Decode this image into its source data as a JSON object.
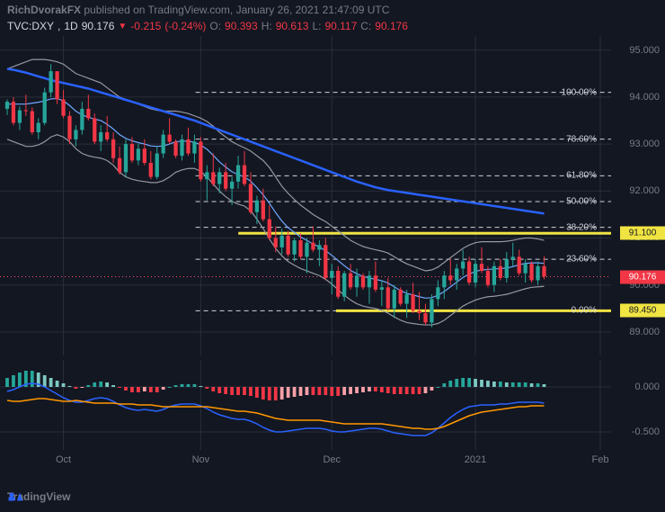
{
  "header": {
    "author": "RichDvorakFX",
    "pub_text": "published on TradingView.com, January 26, 2021 21:47:09 UTC"
  },
  "symbol": {
    "ticker": "TVC:DXY",
    "tf": "1D",
    "last": "90.176",
    "chg": "-0.215",
    "chg_pct": "(-0.24%)",
    "o_lbl": "O:",
    "o": "90.393",
    "h_lbl": "H:",
    "h": "90.613",
    "l_lbl": "L:",
    "l": "90.117",
    "c_lbl": "C:",
    "c": "90.176"
  },
  "footer": {
    "brand": "TradingView"
  },
  "colors": {
    "bg": "#131722",
    "grid": "#2a2e39",
    "axis_text": "#787b86",
    "up": "#26a69a",
    "dn": "#f23645",
    "bb": "#9598a1",
    "ma_blue": "#2962ff",
    "dot_red": "#ff4d6d",
    "dash_white": "#d1d4dc",
    "yellow": "#f0e442",
    "badge_red": "#f23645",
    "badge_yellow": "#f0e442",
    "badge_red_tx": "#ffffff",
    "badge_yellow_tx": "#131722",
    "macd_orange": "#ff9800",
    "macd_blue": "#2962ff",
    "hist_pos": "#26a69a",
    "hist_neg": "#f23645",
    "hist_pos_fade": "#7dc9c1",
    "hist_neg_fade": "#f8a0a8"
  },
  "y": {
    "min": 88.5,
    "max": 95.3,
    "ticks": [
      95.0,
      94.0,
      93.0,
      92.0,
      91.0,
      90.0,
      89.0
    ]
  },
  "x": {
    "ticks": [
      {
        "i": 9,
        "l": "Oct"
      },
      {
        "i": 31,
        "l": "Nov"
      },
      {
        "i": 52,
        "l": "Dec"
      },
      {
        "i": 75,
        "l": "2021"
      },
      {
        "i": 95,
        "l": "Feb"
      }
    ],
    "n": 96
  },
  "fib": {
    "levels": [
      {
        "pct": "100.00%",
        "y": 94.1
      },
      {
        "pct": "78.60%",
        "y": 93.105
      },
      {
        "pct": "61.80%",
        "y": 92.324
      },
      {
        "pct": "50.00%",
        "y": 91.775
      },
      {
        "pct": "38.20%",
        "y": 91.227
      },
      {
        "pct": "23.60%",
        "y": 90.548
      },
      {
        "pct": "0.00%",
        "y": 89.45
      }
    ],
    "x_start": 0.32
  },
  "badges": [
    {
      "y": 91.1,
      "txt": "91.100",
      "bg": "#f0e442",
      "tx": "#131722"
    },
    {
      "y": 90.176,
      "txt": "90.176",
      "bg": "#f23645",
      "tx": "#ffffff"
    },
    {
      "y": 89.45,
      "txt": "89.450",
      "bg": "#f0e442",
      "tx": "#131722"
    }
  ],
  "yellow_lines": [
    {
      "y": 91.1,
      "x0": 0.39,
      "x1": 1.0
    },
    {
      "y": 89.45,
      "x0": 0.55,
      "x1": 1.0
    }
  ],
  "dot_red_y": 90.176,
  "candles": [
    [
      93.75,
      93.95,
      93.62,
      93.9,
      1
    ],
    [
      93.9,
      94.0,
      93.4,
      93.45,
      0
    ],
    [
      93.45,
      93.8,
      93.3,
      93.72,
      1
    ],
    [
      93.72,
      94.05,
      93.6,
      93.7,
      0
    ],
    [
      93.7,
      93.78,
      93.2,
      93.25,
      0
    ],
    [
      93.25,
      93.55,
      93.1,
      93.45,
      1
    ],
    [
      93.45,
      94.2,
      93.4,
      94.1,
      1
    ],
    [
      94.1,
      94.7,
      94.0,
      94.55,
      1
    ],
    [
      94.55,
      94.55,
      93.85,
      93.95,
      0
    ],
    [
      93.95,
      94.15,
      93.55,
      93.6,
      0
    ],
    [
      93.6,
      93.7,
      93.0,
      93.1,
      0
    ],
    [
      93.1,
      93.4,
      92.95,
      93.3,
      1
    ],
    [
      93.3,
      93.9,
      93.2,
      93.75,
      1
    ],
    [
      93.75,
      94.05,
      93.5,
      93.55,
      0
    ],
    [
      93.55,
      93.65,
      93.0,
      93.05,
      0
    ],
    [
      93.05,
      93.4,
      92.85,
      93.25,
      1
    ],
    [
      93.25,
      93.6,
      93.05,
      93.1,
      0
    ],
    [
      93.1,
      93.25,
      92.6,
      92.7,
      0
    ],
    [
      92.7,
      92.95,
      92.35,
      92.4,
      0
    ],
    [
      92.4,
      93.1,
      92.3,
      93.0,
      1
    ],
    [
      93.0,
      93.15,
      92.6,
      92.65,
      0
    ],
    [
      92.65,
      93.0,
      92.55,
      92.9,
      1
    ],
    [
      92.9,
      93.1,
      92.55,
      92.6,
      0
    ],
    [
      92.6,
      92.85,
      92.25,
      92.3,
      0
    ],
    [
      92.3,
      92.95,
      92.25,
      92.8,
      1
    ],
    [
      92.8,
      93.3,
      92.7,
      93.2,
      1
    ],
    [
      93.2,
      93.55,
      93.0,
      93.05,
      0
    ],
    [
      93.05,
      93.1,
      92.7,
      92.75,
      0
    ],
    [
      92.75,
      93.2,
      92.65,
      93.1,
      1
    ],
    [
      93.1,
      93.35,
      92.75,
      92.8,
      0
    ],
    [
      92.8,
      93.2,
      92.6,
      93.05,
      1
    ],
    [
      93.05,
      93.15,
      92.2,
      92.25,
      0
    ],
    [
      92.25,
      92.55,
      91.8,
      92.4,
      1
    ],
    [
      92.4,
      92.8,
      92.1,
      92.15,
      0
    ],
    [
      92.15,
      92.5,
      91.95,
      92.4,
      1
    ],
    [
      92.4,
      92.6,
      92.0,
      92.05,
      0
    ],
    [
      92.05,
      92.3,
      91.7,
      92.2,
      1
    ],
    [
      92.2,
      92.75,
      92.05,
      92.55,
      1
    ],
    [
      92.55,
      92.85,
      92.1,
      92.15,
      0
    ],
    [
      92.15,
      92.4,
      91.5,
      91.55,
      0
    ],
    [
      91.55,
      91.9,
      91.3,
      91.8,
      1
    ],
    [
      91.8,
      92.05,
      91.35,
      91.4,
      0
    ],
    [
      91.4,
      91.7,
      90.95,
      91.0,
      0
    ],
    [
      91.0,
      91.25,
      90.7,
      90.8,
      0
    ],
    [
      90.8,
      91.2,
      90.65,
      91.05,
      1
    ],
    [
      91.05,
      91.15,
      90.6,
      90.65,
      0
    ],
    [
      90.65,
      91.0,
      90.5,
      90.95,
      1
    ],
    [
      90.95,
      91.1,
      90.55,
      90.6,
      0
    ],
    [
      90.6,
      91.0,
      90.25,
      90.9,
      1
    ],
    [
      90.9,
      91.25,
      90.7,
      90.75,
      0
    ],
    [
      90.75,
      90.95,
      90.4,
      90.85,
      1
    ],
    [
      90.85,
      91.0,
      90.1,
      90.15,
      0
    ],
    [
      90.15,
      90.45,
      89.8,
      90.3,
      1
    ],
    [
      90.3,
      90.4,
      89.7,
      89.75,
      0
    ],
    [
      89.75,
      90.3,
      89.65,
      90.25,
      1
    ],
    [
      90.25,
      90.45,
      89.9,
      89.95,
      0
    ],
    [
      89.95,
      90.35,
      89.75,
      90.2,
      1
    ],
    [
      90.2,
      90.25,
      89.9,
      89.95,
      0
    ],
    [
      89.95,
      90.3,
      89.6,
      90.2,
      1
    ],
    [
      90.2,
      90.5,
      89.85,
      89.9,
      0
    ],
    [
      89.9,
      90.1,
      89.55,
      89.95,
      1
    ],
    [
      89.95,
      90.15,
      89.45,
      89.5,
      0
    ],
    [
      89.5,
      90.0,
      89.3,
      89.9,
      1
    ],
    [
      89.9,
      89.95,
      89.55,
      89.6,
      0
    ],
    [
      89.6,
      89.9,
      89.3,
      89.8,
      1
    ],
    [
      89.8,
      90.05,
      89.4,
      89.45,
      0
    ],
    [
      89.45,
      89.85,
      89.25,
      89.4,
      0
    ],
    [
      89.4,
      89.6,
      89.15,
      89.2,
      0
    ],
    [
      89.2,
      89.8,
      89.1,
      89.7,
      1
    ],
    [
      89.7,
      90.1,
      89.55,
      89.95,
      1
    ],
    [
      89.95,
      90.3,
      89.7,
      90.2,
      1
    ],
    [
      90.2,
      90.55,
      90.0,
      90.1,
      0
    ],
    [
      90.1,
      90.45,
      89.9,
      90.35,
      1
    ],
    [
      90.35,
      90.75,
      90.2,
      90.5,
      1
    ],
    [
      90.5,
      90.6,
      90.0,
      90.05,
      0
    ],
    [
      90.05,
      90.55,
      89.95,
      90.45,
      1
    ],
    [
      90.45,
      90.8,
      90.25,
      90.3,
      0
    ],
    [
      90.3,
      90.4,
      89.95,
      90.0,
      0
    ],
    [
      90.0,
      90.5,
      89.85,
      90.4,
      1
    ],
    [
      90.4,
      90.55,
      90.1,
      90.15,
      0
    ],
    [
      90.15,
      90.7,
      90.05,
      90.55,
      1
    ],
    [
      90.55,
      90.9,
      90.4,
      90.6,
      1
    ],
    [
      90.6,
      90.75,
      90.2,
      90.25,
      0
    ],
    [
      90.25,
      90.55,
      90.05,
      90.45,
      1
    ],
    [
      90.45,
      90.5,
      90.05,
      90.1,
      0
    ],
    [
      90.1,
      90.5,
      90.0,
      90.4,
      1
    ],
    [
      90.4,
      90.61,
      90.12,
      90.18,
      0
    ]
  ],
  "bb_upper": [
    94.6,
    94.65,
    94.7,
    94.75,
    94.8,
    94.8,
    94.8,
    94.78,
    94.75,
    94.7,
    94.6,
    94.5,
    94.45,
    94.4,
    94.35,
    94.3,
    94.2,
    94.1,
    94.0,
    93.95,
    93.9,
    93.85,
    93.8,
    93.75,
    93.72,
    93.7,
    93.7,
    93.7,
    93.68,
    93.65,
    93.6,
    93.55,
    93.48,
    93.38,
    93.25,
    93.15,
    93.05,
    92.98,
    92.92,
    92.85,
    92.75,
    92.65,
    92.5,
    92.3,
    92.1,
    91.95,
    91.82,
    91.7,
    91.6,
    91.5,
    91.42,
    91.35,
    91.25,
    91.15,
    91.05,
    90.95,
    90.88,
    90.82,
    90.78,
    90.75,
    90.72,
    90.68,
    90.6,
    90.52,
    90.45,
    90.4,
    90.35,
    90.3,
    90.32,
    90.38,
    90.48,
    90.58,
    90.68,
    90.78,
    90.85,
    90.9,
    90.92,
    90.92,
    90.92,
    90.92,
    90.93,
    90.95,
    90.98,
    91.0,
    91.0,
    90.98,
    90.95
  ],
  "bb_lower": [
    93.1,
    93.05,
    93.0,
    92.95,
    92.95,
    92.98,
    93.05,
    93.15,
    93.2,
    93.15,
    93.05,
    92.9,
    92.8,
    92.75,
    92.72,
    92.7,
    92.65,
    92.55,
    92.4,
    92.3,
    92.25,
    92.22,
    92.2,
    92.18,
    92.18,
    92.22,
    92.3,
    92.4,
    92.45,
    92.48,
    92.48,
    92.42,
    92.3,
    92.15,
    92.0,
    91.88,
    91.78,
    91.72,
    91.68,
    91.58,
    91.4,
    91.2,
    90.98,
    90.78,
    90.62,
    90.5,
    90.42,
    90.35,
    90.3,
    90.25,
    90.2,
    90.12,
    90.02,
    89.9,
    89.78,
    89.68,
    89.6,
    89.55,
    89.52,
    89.5,
    89.46,
    89.4,
    89.32,
    89.25,
    89.2,
    89.18,
    89.16,
    89.15,
    89.15,
    89.18,
    89.25,
    89.35,
    89.45,
    89.55,
    89.62,
    89.68,
    89.72,
    89.75,
    89.76,
    89.78,
    89.8,
    89.84,
    89.88,
    89.92,
    89.95,
    89.96,
    89.97
  ],
  "bb_mid": [
    93.85,
    93.85,
    93.85,
    93.85,
    93.87,
    93.89,
    93.92,
    93.96,
    93.97,
    93.92,
    93.82,
    93.7,
    93.62,
    93.57,
    93.53,
    93.5,
    93.42,
    93.32,
    93.2,
    93.12,
    93.07,
    93.03,
    93.0,
    92.96,
    92.95,
    92.96,
    93.0,
    93.05,
    93.06,
    93.06,
    93.04,
    92.98,
    92.89,
    92.76,
    92.62,
    92.51,
    92.41,
    92.35,
    92.3,
    92.21,
    92.07,
    91.92,
    91.74,
    91.54,
    91.36,
    91.22,
    91.12,
    91.02,
    90.95,
    90.87,
    90.81,
    90.73,
    90.63,
    90.52,
    90.41,
    90.31,
    90.24,
    90.18,
    90.15,
    90.12,
    90.09,
    90.04,
    89.96,
    89.88,
    89.82,
    89.79,
    89.75,
    89.72,
    89.73,
    89.78,
    89.86,
    89.96,
    90.06,
    90.16,
    90.23,
    90.29,
    90.32,
    90.33,
    90.34,
    90.35,
    90.36,
    90.39,
    90.43,
    90.46,
    90.47,
    90.47,
    90.46
  ],
  "ma_long": [
    94.6,
    94.58,
    94.55,
    94.52,
    94.48,
    94.44,
    94.4,
    94.36,
    94.33,
    94.3,
    94.27,
    94.24,
    94.21,
    94.18,
    94.14,
    94.1,
    94.06,
    94.02,
    93.98,
    93.94,
    93.9,
    93.86,
    93.82,
    93.78,
    93.74,
    93.7,
    93.66,
    93.62,
    93.58,
    93.54,
    93.5,
    93.45,
    93.4,
    93.35,
    93.3,
    93.25,
    93.2,
    93.15,
    93.1,
    93.05,
    93.0,
    92.95,
    92.9,
    92.85,
    92.8,
    92.75,
    92.7,
    92.65,
    92.6,
    92.55,
    92.5,
    92.45,
    92.4,
    92.35,
    92.3,
    92.25,
    92.2,
    92.16,
    92.12,
    92.08,
    92.05,
    92.02,
    92.0,
    91.98,
    91.96,
    91.94,
    91.92,
    91.9,
    91.88,
    91.86,
    91.84,
    91.82,
    91.8,
    91.78,
    91.76,
    91.74,
    91.72,
    91.7,
    91.68,
    91.66,
    91.64,
    91.62,
    91.6,
    91.58,
    91.56,
    91.54,
    91.52
  ],
  "sub": {
    "min": -0.7,
    "max": 0.3,
    "ticks": [
      0.0,
      -0.5
    ],
    "hist": [
      0.1,
      0.13,
      0.16,
      0.18,
      0.18,
      0.16,
      0.13,
      0.1,
      0.07,
      0.04,
      0.01,
      -0.02,
      -0.01,
      0.02,
      0.05,
      0.06,
      0.05,
      0.02,
      -0.01,
      -0.04,
      -0.06,
      -0.06,
      -0.05,
      -0.06,
      -0.06,
      -0.03,
      0.0,
      0.02,
      0.03,
      0.03,
      0.03,
      0.01,
      -0.02,
      -0.05,
      -0.07,
      -0.08,
      -0.09,
      -0.09,
      -0.09,
      -0.1,
      -0.12,
      -0.14,
      -0.15,
      -0.15,
      -0.14,
      -0.12,
      -0.11,
      -0.1,
      -0.09,
      -0.09,
      -0.09,
      -0.09,
      -0.1,
      -0.1,
      -0.09,
      -0.08,
      -0.07,
      -0.06,
      -0.05,
      -0.05,
      -0.06,
      -0.07,
      -0.08,
      -0.08,
      -0.08,
      -0.08,
      -0.08,
      -0.07,
      -0.04,
      0.0,
      0.04,
      0.07,
      0.09,
      0.1,
      0.1,
      0.09,
      0.08,
      0.07,
      0.06,
      0.06,
      0.05,
      0.05,
      0.05,
      0.05,
      0.04,
      0.04,
      0.03
    ],
    "macd": [
      -0.05,
      -0.03,
      0.0,
      0.03,
      0.04,
      0.03,
      0.0,
      -0.04,
      -0.08,
      -0.12,
      -0.15,
      -0.17,
      -0.17,
      -0.15,
      -0.13,
      -0.12,
      -0.13,
      -0.16,
      -0.2,
      -0.23,
      -0.25,
      -0.26,
      -0.25,
      -0.26,
      -0.27,
      -0.25,
      -0.22,
      -0.2,
      -0.19,
      -0.19,
      -0.19,
      -0.21,
      -0.24,
      -0.28,
      -0.31,
      -0.33,
      -0.35,
      -0.36,
      -0.36,
      -0.38,
      -0.41,
      -0.45,
      -0.48,
      -0.5,
      -0.5,
      -0.49,
      -0.48,
      -0.47,
      -0.46,
      -0.46,
      -0.46,
      -0.47,
      -0.49,
      -0.5,
      -0.5,
      -0.49,
      -0.48,
      -0.47,
      -0.46,
      -0.46,
      -0.47,
      -0.49,
      -0.51,
      -0.52,
      -0.53,
      -0.54,
      -0.54,
      -0.54,
      -0.51,
      -0.46,
      -0.4,
      -0.34,
      -0.29,
      -0.25,
      -0.22,
      -0.21,
      -0.2,
      -0.2,
      -0.2,
      -0.19,
      -0.19,
      -0.18,
      -0.17,
      -0.17,
      -0.17,
      -0.17,
      -0.18
    ],
    "signal": [
      -0.15,
      -0.16,
      -0.16,
      -0.15,
      -0.14,
      -0.13,
      -0.13,
      -0.14,
      -0.15,
      -0.16,
      -0.16,
      -0.15,
      -0.16,
      -0.17,
      -0.18,
      -0.18,
      -0.18,
      -0.18,
      -0.19,
      -0.19,
      -0.19,
      -0.2,
      -0.2,
      -0.2,
      -0.21,
      -0.22,
      -0.22,
      -0.22,
      -0.22,
      -0.22,
      -0.22,
      -0.22,
      -0.22,
      -0.23,
      -0.24,
      -0.25,
      -0.26,
      -0.27,
      -0.27,
      -0.28,
      -0.29,
      -0.31,
      -0.33,
      -0.35,
      -0.36,
      -0.37,
      -0.37,
      -0.37,
      -0.37,
      -0.37,
      -0.37,
      -0.38,
      -0.39,
      -0.4,
      -0.41,
      -0.41,
      -0.41,
      -0.41,
      -0.41,
      -0.41,
      -0.41,
      -0.42,
      -0.43,
      -0.44,
      -0.45,
      -0.46,
      -0.46,
      -0.47,
      -0.47,
      -0.46,
      -0.44,
      -0.41,
      -0.38,
      -0.35,
      -0.32,
      -0.3,
      -0.28,
      -0.27,
      -0.26,
      -0.25,
      -0.24,
      -0.23,
      -0.22,
      -0.22,
      -0.21,
      -0.21,
      -0.21
    ]
  }
}
